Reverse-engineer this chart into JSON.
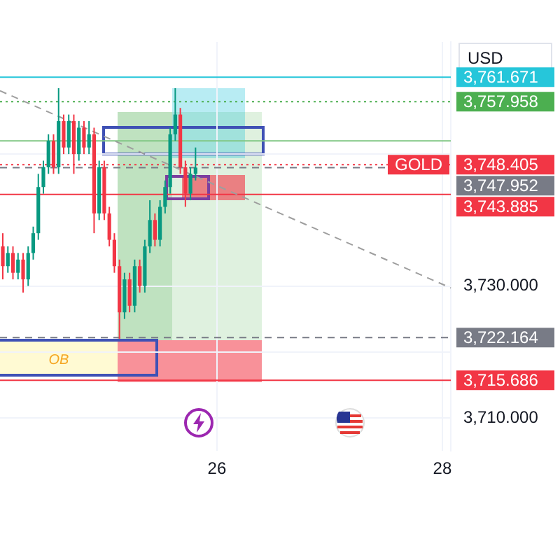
{
  "chart_data": {
    "type": "candlestick",
    "ylabel": "USD",
    "x": [
      24.1,
      24.145,
      24.19,
      24.235,
      24.28,
      24.325,
      24.37,
      24.415,
      24.46,
      24.505,
      24.55,
      24.595,
      24.64,
      24.685,
      24.73,
      24.775,
      24.82,
      24.865,
      24.91,
      24.955,
      25.0,
      25.045,
      25.09,
      25.135,
      25.18,
      25.225,
      25.27,
      25.315,
      25.36,
      25.405,
      25.45,
      25.495,
      25.54,
      25.585,
      25.63,
      25.675,
      25.72,
      25.765,
      25.81
    ],
    "ohlc": [
      [
        3736,
        3738,
        3731,
        3733
      ],
      [
        3733,
        3736,
        3732,
        3735
      ],
      [
        3735,
        3736,
        3731,
        3732
      ],
      [
        3732,
        3735,
        3731,
        3734
      ],
      [
        3734,
        3735,
        3729,
        3731
      ],
      [
        3731,
        3736,
        3730,
        3735
      ],
      [
        3735,
        3739,
        3734,
        3738
      ],
      [
        3738,
        3747,
        3737,
        3745
      ],
      [
        3745,
        3749,
        3744,
        3748
      ],
      [
        3748,
        3753,
        3747,
        3752
      ],
      [
        3752,
        3753,
        3747,
        3748
      ],
      [
        3748,
        3760,
        3747,
        3755
      ],
      [
        3755,
        3756,
        3750,
        3751
      ],
      [
        3751,
        3756,
        3750,
        3755
      ],
      [
        3755,
        3756,
        3747,
        3750
      ],
      [
        3750,
        3755,
        3749,
        3754
      ],
      [
        3754,
        3755,
        3750,
        3751
      ],
      [
        3751,
        3755,
        3750,
        3753
      ],
      [
        3753,
        3754,
        3738,
        3741
      ],
      [
        3741,
        3749,
        3740,
        3748
      ],
      [
        3748,
        3749,
        3740,
        3741
      ],
      [
        3741,
        3742,
        3736,
        3737
      ],
      [
        3737,
        3738,
        3732,
        3733
      ],
      [
        3733,
        3734,
        3722,
        3726
      ],
      [
        3726,
        3732,
        3725,
        3731
      ],
      [
        3731,
        3732,
        3726,
        3727
      ],
      [
        3727,
        3734,
        3726,
        3733
      ],
      [
        3733,
        3734,
        3729,
        3730
      ],
      [
        3730,
        3737,
        3729,
        3736
      ],
      [
        3736,
        3743,
        3735,
        3740
      ],
      [
        3740,
        3741,
        3736,
        3737
      ],
      [
        3737,
        3743,
        3736,
        3742
      ],
      [
        3742,
        3746,
        3741,
        3745
      ],
      [
        3745,
        3754,
        3744,
        3753
      ],
      [
        3753,
        3760,
        3752,
        3756
      ],
      [
        3756,
        3757,
        3747,
        3748
      ],
      [
        3748,
        3749,
        3742,
        3744
      ],
      [
        3744,
        3748,
        3743,
        3747
      ],
      [
        3747,
        3751,
        3746,
        3747.952
      ]
    ],
    "series": [
      {
        "type": "line",
        "color": "#9e9e9e",
        "line_style": "dashed",
        "x": [
          24.075,
          28.075
        ],
        "values": [
          3759.6,
          3729.7
        ]
      }
    ],
    "xlim": [
      24.075,
      28.075
    ],
    "xticks": [
      26,
      28
    ],
    "ylim": [
      3705,
      3767
    ],
    "yticks": [
      {
        "value": 3710,
        "label": "3,710.000"
      },
      {
        "value": 3720,
        "label": null
      },
      {
        "value": 3730,
        "label": "3,730.000"
      },
      {
        "value": 3750,
        "label": null
      }
    ],
    "grid": true,
    "ref_lines": [
      {
        "axis": "y",
        "value": 3761.671,
        "label": "3,761.671",
        "color": "#26c6da",
        "line_style": "solid"
      },
      {
        "axis": "y",
        "value": 3757.958,
        "label": "3,757.958",
        "color": "#4caf50",
        "line_style": "dotted"
      },
      {
        "axis": "y",
        "value": 3752,
        "color": "#81c784",
        "line_style": "solid"
      },
      {
        "axis": "y",
        "value": 3748.405,
        "label": "3,748.405",
        "color": "#f23645",
        "line_style": "dotted"
      },
      {
        "axis": "y",
        "value": 3747.952,
        "label": "3,747.952",
        "color": "#787b86",
        "line_style": "dashed"
      },
      {
        "axis": "y",
        "value": 3743.885,
        "label": "3,743.885",
        "color": "#f23645",
        "line_style": "solid"
      },
      {
        "axis": "y",
        "value": 3722.164,
        "label": "3,722.164",
        "color": "#787b86",
        "line_style": "dashed"
      },
      {
        "axis": "y",
        "value": 3715.686,
        "label": "3,715.686",
        "color": "#f23645",
        "line_style": "solid"
      }
    ],
    "annotations": [
      "GOLD",
      "OB"
    ]
  }
}
